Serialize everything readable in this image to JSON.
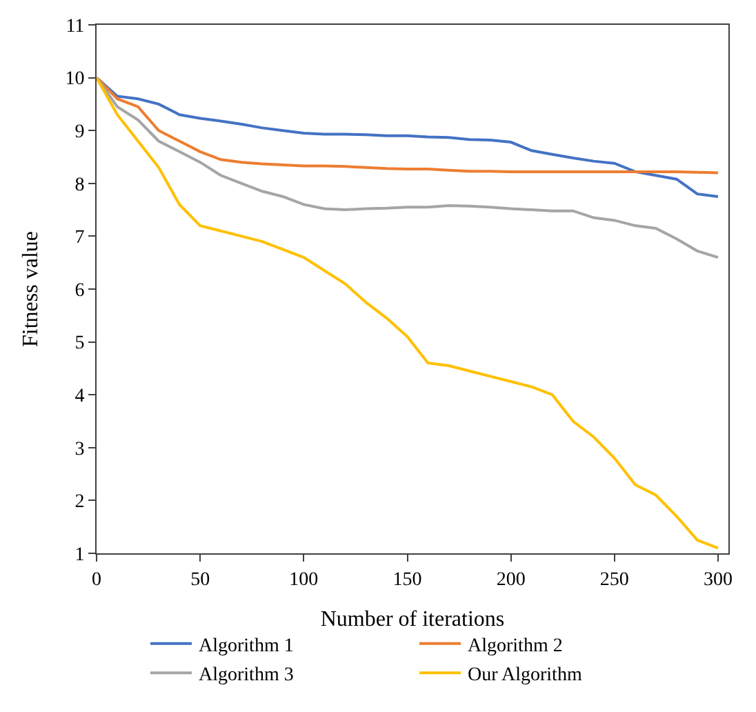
{
  "chart_data": {
    "type": "line",
    "xlabel": "Number of iterations",
    "ylabel": "Fitness value",
    "x": [
      0,
      10,
      20,
      30,
      40,
      50,
      60,
      70,
      80,
      90,
      100,
      110,
      120,
      130,
      140,
      150,
      160,
      170,
      180,
      190,
      200,
      210,
      220,
      230,
      240,
      250,
      260,
      270,
      280,
      290,
      300
    ],
    "xlim": [
      0,
      305
    ],
    "xticks": [
      0,
      50,
      100,
      150,
      200,
      250,
      300
    ],
    "ylim": [
      1,
      11
    ],
    "yticks": [
      1,
      2,
      3,
      4,
      5,
      6,
      7,
      8,
      9,
      10,
      11
    ],
    "grid": false,
    "legend": "bottom",
    "marker": "none",
    "line_style": "solid",
    "series": [
      {
        "name": "Algorithm 1",
        "color": "#4472c4",
        "values": [
          10,
          9.65,
          9.6,
          9.5,
          9.3,
          9.23,
          9.18,
          9.12,
          9.05,
          9.0,
          8.95,
          8.93,
          8.93,
          8.92,
          8.9,
          8.9,
          8.88,
          8.87,
          8.83,
          8.82,
          8.78,
          8.62,
          8.55,
          8.48,
          8.42,
          8.38,
          8.22,
          8.15,
          8.08,
          7.8,
          7.75
        ]
      },
      {
        "name": "Algorithm 2",
        "color": "#ed7d31",
        "values": [
          10,
          9.6,
          9.45,
          9.0,
          8.8,
          8.6,
          8.45,
          8.4,
          8.37,
          8.35,
          8.33,
          8.33,
          8.32,
          8.3,
          8.28,
          8.27,
          8.27,
          8.25,
          8.23,
          8.23,
          8.22,
          8.22,
          8.22,
          8.22,
          8.22,
          8.22,
          8.22,
          8.22,
          8.22,
          8.21,
          8.2
        ]
      },
      {
        "name": "Algorithm 3",
        "color": "#a5a5a5",
        "values": [
          10,
          9.45,
          9.2,
          8.8,
          8.6,
          8.4,
          8.15,
          8.0,
          7.85,
          7.75,
          7.6,
          7.52,
          7.5,
          7.52,
          7.53,
          7.55,
          7.55,
          7.58,
          7.57,
          7.55,
          7.52,
          7.5,
          7.48,
          7.48,
          7.35,
          7.3,
          7.2,
          7.15,
          6.95,
          6.72,
          6.6
        ]
      },
      {
        "name": "Our Algorithm",
        "color": "#ffc000",
        "values": [
          10,
          9.3,
          8.8,
          8.3,
          7.6,
          7.2,
          7.1,
          7.0,
          6.9,
          6.75,
          6.6,
          6.35,
          6.1,
          5.75,
          5.45,
          5.1,
          4.6,
          4.55,
          4.45,
          4.35,
          4.25,
          4.15,
          4.0,
          3.5,
          3.2,
          2.8,
          2.3,
          2.1,
          1.7,
          1.25,
          1.1
        ]
      }
    ]
  }
}
